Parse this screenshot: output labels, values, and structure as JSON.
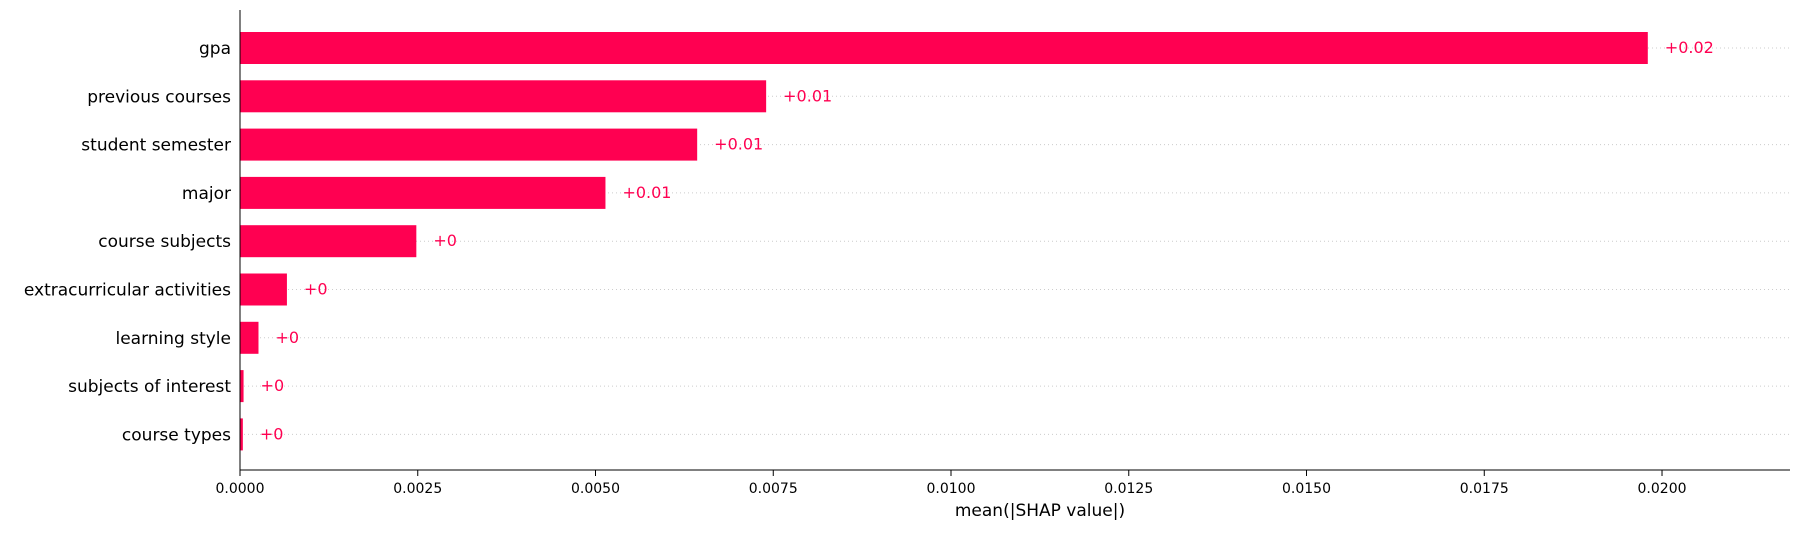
{
  "chart_data": {
    "type": "bar",
    "orientation": "horizontal",
    "categories": [
      "gpa",
      "previous courses",
      "student semester",
      "major",
      "course subjects",
      "extracurricular activities",
      "learning style",
      "subjects of interest",
      "course types"
    ],
    "values": [
      0.0198,
      0.0074,
      0.00643,
      0.00514,
      0.00248,
      0.00066,
      0.00026,
      5e-05,
      4e-05
    ],
    "value_labels": [
      "+0.02",
      "+0.01",
      "+0.01",
      "+0.01",
      "+0",
      "+0",
      "+0",
      "+0",
      "+0"
    ],
    "xlabel": "mean(|SHAP value|)",
    "ylabel": "",
    "title": "",
    "xlim": [
      0,
      0.0218
    ],
    "xticks": [
      0,
      0.0025,
      0.005,
      0.0075,
      0.01,
      0.0125,
      0.015,
      0.0175,
      0.02
    ],
    "xtick_labels": [
      "0.0000",
      "0.0025",
      "0.0050",
      "0.0075",
      "0.0100",
      "0.0125",
      "0.0150",
      "0.0175",
      "0.0200"
    ],
    "grid": "dotted horizontal lines per bar",
    "legend": "none",
    "colors": {
      "bar": "#ff0051",
      "value_label": "#ff0051",
      "axis": "#000000",
      "grid": "#cccccc"
    }
  }
}
